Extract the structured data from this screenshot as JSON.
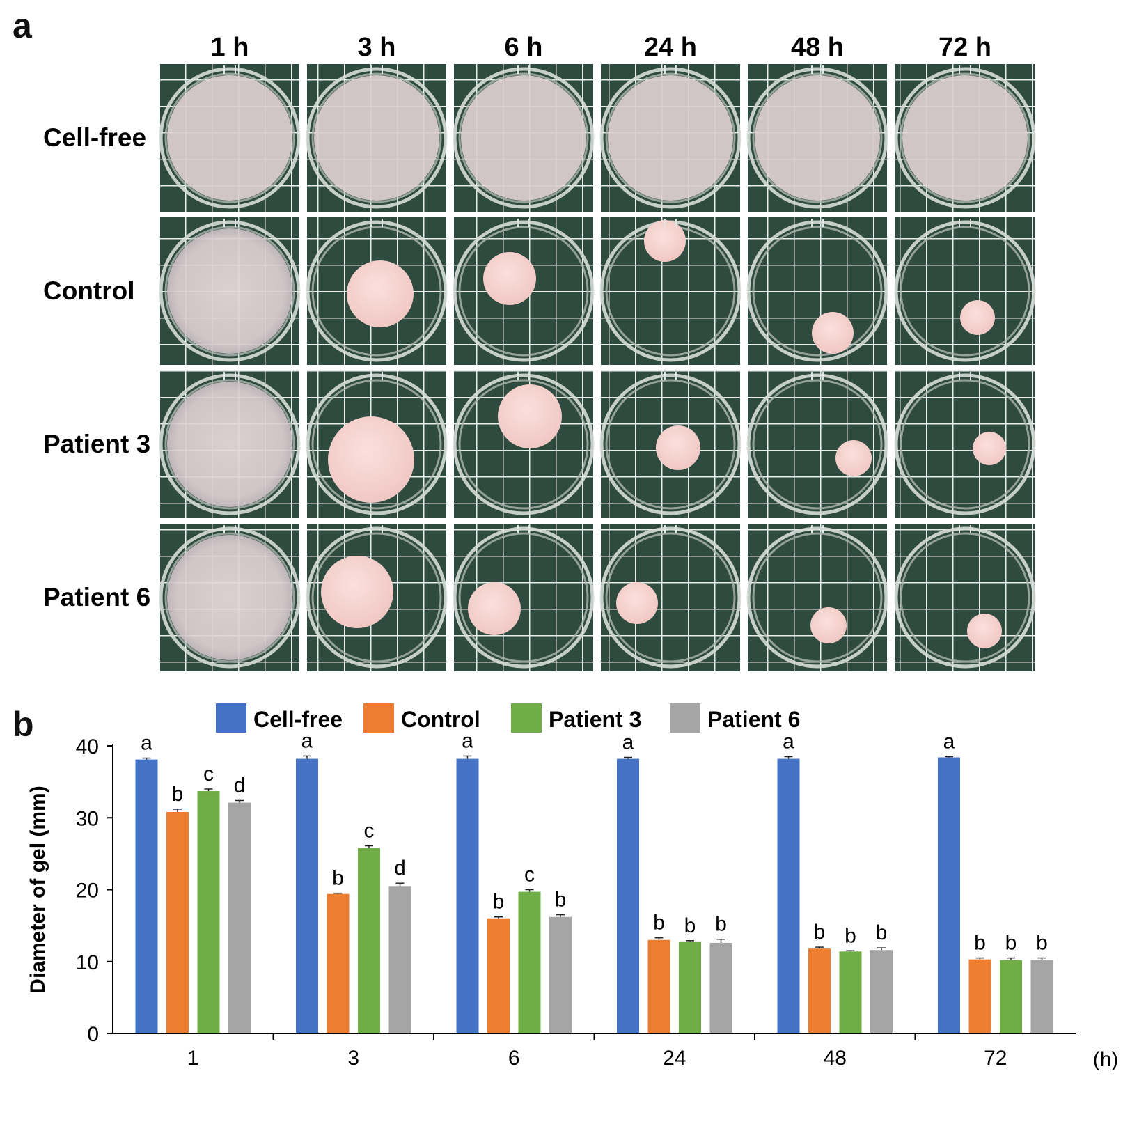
{
  "panel_a": {
    "letter": "a",
    "time_labels": [
      "1 h",
      "3 h",
      "6 h",
      "24 h",
      "48 h",
      "72 h"
    ],
    "row_labels": [
      "Cell-free",
      "Control",
      "Patient 3",
      "Patient 6"
    ]
  },
  "panel_b": {
    "letter": "b"
  },
  "chart_data": {
    "type": "bar",
    "title": "",
    "xlabel": "",
    "x_unit_label": "(h)",
    "ylabel": "Diameter of gel (mm)",
    "ylim": [
      0,
      40
    ],
    "yticks": [
      0,
      10,
      20,
      30,
      40
    ],
    "categories": [
      "1",
      "3",
      "6",
      "24",
      "48",
      "72"
    ],
    "legend_position": "top",
    "series": [
      {
        "name": "Cell-free",
        "color": "#4472c4",
        "values": [
          38.1,
          38.2,
          38.2,
          38.2,
          38.2,
          38.4
        ],
        "errors": [
          0.2,
          0.4,
          0.4,
          0.2,
          0.3,
          0.1
        ],
        "letters": [
          "a",
          "a",
          "a",
          "a",
          "a",
          "a"
        ]
      },
      {
        "name": "Control",
        "color": "#ed7d31",
        "values": [
          30.8,
          19.4,
          16.0,
          13.0,
          11.8,
          10.3
        ],
        "errors": [
          0.4,
          0.1,
          0.2,
          0.3,
          0.2,
          0.2
        ],
        "letters": [
          "b",
          "b",
          "b",
          "b",
          "b",
          "b"
        ]
      },
      {
        "name": "Patient 3",
        "color": "#70ad47",
        "values": [
          33.7,
          25.8,
          19.7,
          12.8,
          11.4,
          10.2
        ],
        "errors": [
          0.3,
          0.3,
          0.3,
          0.1,
          0.1,
          0.3
        ],
        "letters": [
          "c",
          "c",
          "c",
          "b",
          "b",
          "b"
        ]
      },
      {
        "name": "Patient 6",
        "color": "#a5a5a5",
        "values": [
          32.1,
          20.5,
          16.2,
          12.6,
          11.6,
          10.2
        ],
        "errors": [
          0.3,
          0.4,
          0.3,
          0.5,
          0.3,
          0.3
        ],
        "letters": [
          "d",
          "d",
          "b",
          "b",
          "b",
          "b"
        ]
      }
    ]
  }
}
